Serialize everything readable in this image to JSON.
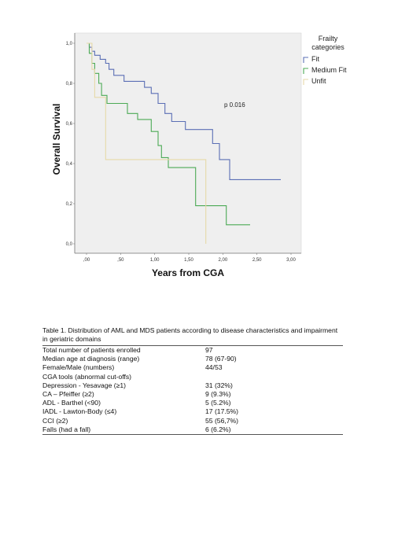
{
  "chart_data": {
    "type": "line",
    "xlabel": "Years from CGA",
    "ylabel": "Overall Survival",
    "xlim": [
      0,
      3.0
    ],
    "ylim": [
      0,
      1.0
    ],
    "x_ticks": [
      ",00",
      ",50",
      "1,00",
      "1,50",
      "2,00",
      "2,50",
      "3,00"
    ],
    "x_tick_values": [
      0,
      0.5,
      1.0,
      1.5,
      2.0,
      2.5,
      3.0
    ],
    "y_ticks": [
      "0,0",
      "0,2",
      "0,4",
      "0,6",
      "0,8",
      "1,0"
    ],
    "y_tick_values": [
      0,
      0.2,
      0.4,
      0.6,
      0.8,
      1.0
    ],
    "legend_title": "Frailty categories",
    "legend_placement": "top-right",
    "annotation": "p 0.016",
    "grid": false,
    "background": "#efefef",
    "series": [
      {
        "name": "Fit",
        "color": "#5b6fb5",
        "x": [
          0.0,
          0.04,
          0.04,
          0.08,
          0.08,
          0.12,
          0.12,
          0.2,
          0.2,
          0.28,
          0.28,
          0.33,
          0.33,
          0.4,
          0.4,
          0.55,
          0.55,
          0.85,
          0.85,
          0.95,
          0.95,
          1.05,
          1.05,
          1.15,
          1.15,
          1.25,
          1.25,
          1.45,
          1.45,
          1.85,
          1.85,
          1.95,
          1.95,
          2.1,
          2.1,
          2.85
        ],
        "y": [
          1.0,
          1.0,
          0.98,
          0.98,
          0.96,
          0.96,
          0.94,
          0.94,
          0.92,
          0.92,
          0.9,
          0.9,
          0.87,
          0.87,
          0.84,
          0.84,
          0.81,
          0.81,
          0.78,
          0.78,
          0.75,
          0.75,
          0.7,
          0.7,
          0.65,
          0.65,
          0.61,
          0.61,
          0.57,
          0.57,
          0.5,
          0.5,
          0.42,
          0.42,
          0.32,
          0.32
        ]
      },
      {
        "name": "Medium Fit",
        "color": "#4caa55",
        "x": [
          0.0,
          0.04,
          0.04,
          0.08,
          0.08,
          0.12,
          0.12,
          0.18,
          0.18,
          0.22,
          0.22,
          0.3,
          0.3,
          0.6,
          0.6,
          0.75,
          0.75,
          0.95,
          0.95,
          1.05,
          1.05,
          1.1,
          1.1,
          1.2,
          1.2,
          1.6,
          1.6,
          2.05,
          2.05,
          2.4
        ],
        "y": [
          1.0,
          1.0,
          0.95,
          0.95,
          0.9,
          0.9,
          0.85,
          0.85,
          0.8,
          0.8,
          0.74,
          0.74,
          0.7,
          0.7,
          0.65,
          0.65,
          0.62,
          0.62,
          0.56,
          0.56,
          0.49,
          0.49,
          0.43,
          0.43,
          0.38,
          0.38,
          0.19,
          0.19,
          0.095,
          0.095
        ]
      },
      {
        "name": "Unfit",
        "color": "#e6d9a8",
        "x": [
          0.0,
          0.08,
          0.08,
          0.12,
          0.12,
          0.28,
          0.28,
          1.75,
          1.75
        ],
        "y": [
          1.0,
          1.0,
          0.87,
          0.87,
          0.73,
          0.73,
          0.42,
          0.42,
          0.0
        ]
      }
    ]
  },
  "table": {
    "caption": "Table 1. Distribution of AML and MDS  patients according to disease characteristics and impairment in geriatric domains",
    "rows": [
      {
        "label": "Total number of patients enrolled",
        "value": "97"
      },
      {
        "label": "Median age at diagnosis (range)",
        "value": "78 (67-90)"
      },
      {
        "label": "Female/Male (numbers)",
        "value": "44/53"
      },
      {
        "label": "CGA tools (abnormal cut-offs)",
        "value": ""
      },
      {
        "label": "Depression - Yesavage (≥1)",
        "value": "31 (32%)"
      },
      {
        "label": "CA – Pfeiffer (≥2)",
        "value": "9 (9.3%)"
      },
      {
        "label": "ADL - Barthel (<90)",
        "value": "5 (5.2%)"
      },
      {
        "label": "IADL - Lawton-Body (≤4)",
        "value": "17 (17.5%)"
      },
      {
        "label": "CCI (≥2)",
        "value": "55 (56,7%)"
      },
      {
        "label": "Falls (had a fall)",
        "value": "6 (6.2%)"
      }
    ]
  }
}
